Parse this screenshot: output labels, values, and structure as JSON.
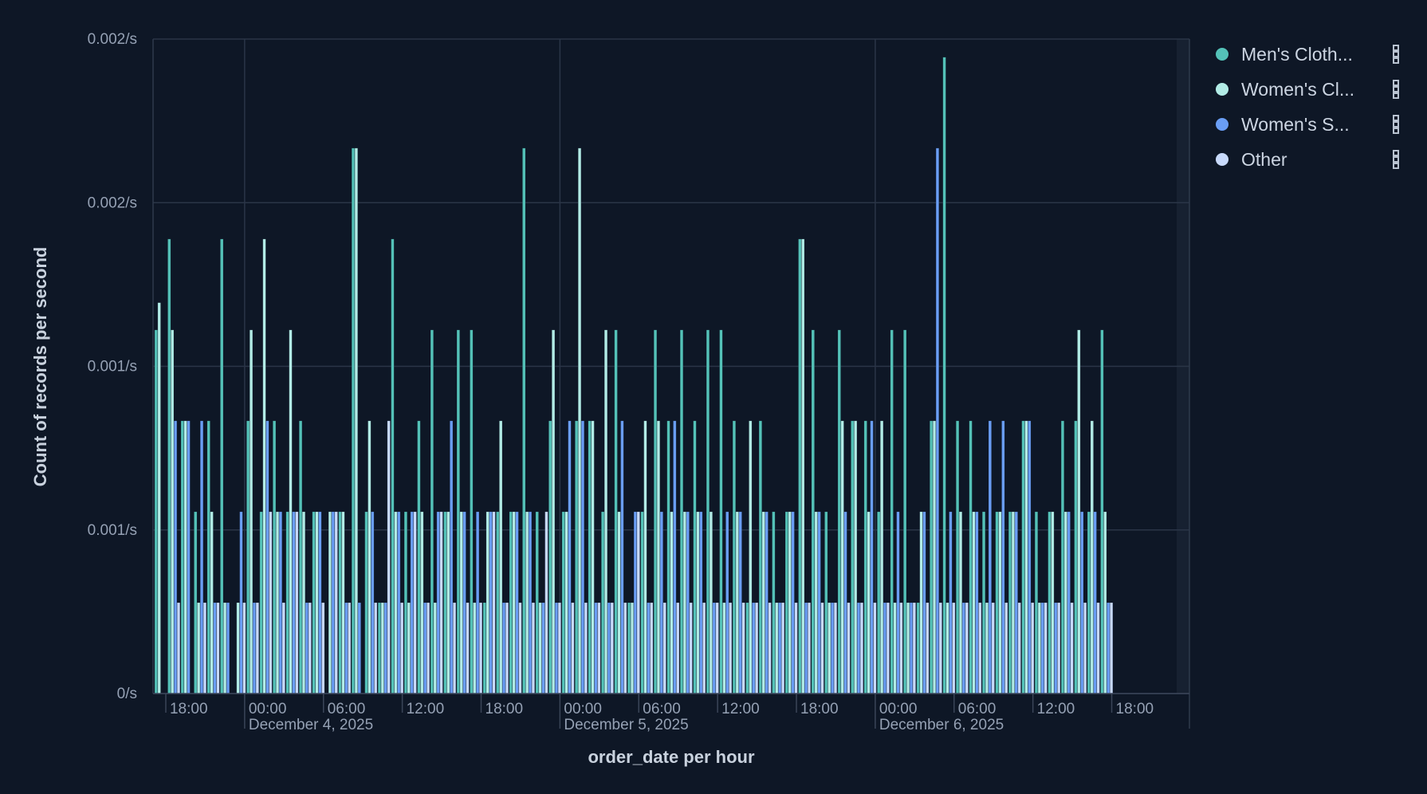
{
  "chart_data": {
    "type": "bar",
    "title": "",
    "xlabel": "order_date per hour",
    "ylabel": "Count of records per second",
    "ylim": [
      0,
      0.002
    ],
    "y_ticks": [
      0,
      0.0005,
      0.001,
      0.0015,
      0.002
    ],
    "y_tick_labels": [
      "0/s",
      "0.001/s",
      "0.001/s",
      "0.002/s",
      "0.002/s"
    ],
    "x_start": "December 3, 2025 17:00",
    "x_interval": "1 hour",
    "value_note": "values are record counts per hour; per-second value = count / 3600",
    "x_tick_labels": [
      {
        "hour_index": 1,
        "label": "18:00"
      },
      {
        "hour_index": 7,
        "label": "00:00",
        "date": "December 4, 2025"
      },
      {
        "hour_index": 13,
        "label": "06:00"
      },
      {
        "hour_index": 19,
        "label": "12:00"
      },
      {
        "hour_index": 25,
        "label": "18:00"
      },
      {
        "hour_index": 31,
        "label": "00:00",
        "date": "December 5, 2025"
      },
      {
        "hour_index": 37,
        "label": "06:00"
      },
      {
        "hour_index": 43,
        "label": "12:00"
      },
      {
        "hour_index": 49,
        "label": "18:00"
      },
      {
        "hour_index": 55,
        "label": "00:00",
        "date": "December 6, 2025"
      },
      {
        "hour_index": 61,
        "label": "06:00"
      },
      {
        "hour_index": 67,
        "label": "12:00"
      },
      {
        "hour_index": 73,
        "label": "18:00"
      }
    ],
    "legend_position": "right",
    "series": [
      {
        "name": "Men's Cloth...",
        "color": "#54c2b8",
        "values": [
          4,
          5,
          3,
          2,
          3,
          5,
          0,
          3,
          2,
          3,
          2,
          3,
          2,
          0,
          2,
          6,
          2,
          1,
          5,
          2,
          3,
          4,
          2,
          4,
          4,
          1,
          2,
          2,
          6,
          2,
          3,
          2,
          3,
          3,
          2,
          4,
          1,
          2,
          4,
          3,
          4,
          3,
          4,
          4,
          3,
          1,
          3,
          2,
          2,
          5,
          4,
          2,
          4,
          3,
          3,
          2,
          4,
          4,
          1,
          3,
          7,
          3,
          3,
          2,
          2,
          2,
          3,
          2,
          2,
          3,
          3,
          2,
          4
        ]
      },
      {
        "name": "Women's Cl...",
        "color": "#b2ece6",
        "values": [
          4.3,
          4,
          3,
          1,
          2,
          1,
          1,
          4,
          5,
          2,
          4,
          2,
          2,
          2,
          2,
          6,
          3,
          1,
          2,
          1,
          2,
          1,
          2,
          2,
          1,
          2,
          3,
          2,
          2,
          1,
          4,
          2,
          6,
          3,
          4,
          2,
          1,
          3,
          3,
          2,
          2,
          2,
          2,
          1,
          2,
          3,
          2,
          1,
          2,
          5,
          2,
          1,
          3,
          3,
          2,
          3,
          1,
          1,
          2,
          3,
          1,
          2,
          2,
          1,
          2,
          2,
          3,
          1,
          2,
          2,
          4,
          3,
          2
        ]
      },
      {
        "name": "Women's S...",
        "color": "#6a9ef5",
        "values": [
          0,
          3,
          3,
          3,
          1,
          1,
          2,
          1,
          3,
          2,
          2,
          1,
          2,
          2,
          1,
          1,
          2,
          1,
          2,
          2,
          1,
          2,
          3,
          2,
          2,
          2,
          1,
          2,
          2,
          1,
          1,
          3,
          3,
          1,
          1,
          3,
          2,
          1,
          2,
          3,
          2,
          2,
          1,
          2,
          2,
          1,
          2,
          1,
          2,
          1,
          2,
          1,
          2,
          1,
          3,
          1,
          2,
          1,
          2,
          6,
          2,
          1,
          2,
          3,
          3,
          2,
          3,
          1,
          1,
          2,
          2,
          2,
          1
        ]
      },
      {
        "name": "Other",
        "color": "#c8dafc",
        "values": [
          0,
          1,
          0,
          1,
          1,
          0,
          1,
          1,
          2,
          1,
          2,
          1,
          1,
          2,
          1,
          0,
          1,
          3,
          1,
          2,
          1,
          2,
          1,
          1,
          1,
          2,
          1,
          1,
          1,
          2,
          1,
          1,
          1,
          1,
          1,
          1,
          2,
          1,
          1,
          1,
          1,
          1,
          1,
          1,
          1,
          1,
          1,
          1,
          1,
          1,
          1,
          1,
          1,
          1,
          1,
          1,
          1,
          1,
          1,
          1,
          1,
          1,
          1,
          1,
          1,
          1,
          1,
          1,
          1,
          1,
          1,
          1,
          1
        ]
      }
    ]
  }
}
